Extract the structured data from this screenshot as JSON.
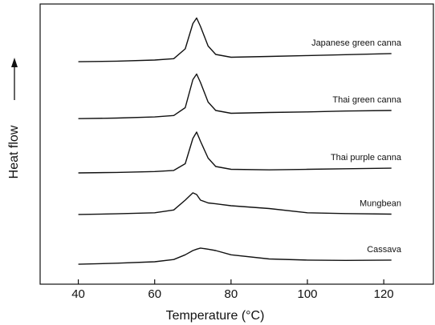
{
  "chart_data": {
    "type": "line",
    "x_label": "Temperature (°C)",
    "y_label": "Heat flow",
    "x": [
      40,
      50,
      60,
      65,
      68,
      70,
      71,
      72,
      74,
      76,
      80,
      90,
      100,
      110,
      122
    ],
    "series": [
      {
        "name": "Japanese green canna",
        "color": "#111111",
        "values": [
          79.4,
          79.6,
          80,
          80.5,
          84,
          93,
          95,
          92,
          85,
          82,
          81,
          81.3,
          81.6,
          81.9,
          82.3
        ]
      },
      {
        "name": "Thai green canna",
        "color": "#111111",
        "values": [
          59.1,
          59.3,
          59.7,
          60.2,
          63,
          73,
          75,
          72,
          65,
          62,
          61,
          61.3,
          61.5,
          61.8,
          62
        ]
      },
      {
        "name": "Thai purple canna",
        "color": "#111111",
        "values": [
          39.7,
          39.9,
          40.2,
          40.6,
          43,
          52,
          54.3,
          51,
          45,
          42,
          41,
          40.8,
          41,
          41.2,
          41.4
        ]
      },
      {
        "name": "Mungbean",
        "color": "#111111",
        "values": [
          24.9,
          25.1,
          25.5,
          26.5,
          30,
          32.6,
          32,
          30,
          29,
          28.7,
          28,
          27,
          25.5,
          25.2,
          25
        ]
      },
      {
        "name": "Cassava",
        "color": "#111111",
        "values": [
          7.1,
          7.5,
          8,
          8.8,
          10.5,
          12,
          12.5,
          12.9,
          12.5,
          12,
          10.5,
          9,
          8.6,
          8.5,
          8.6
        ]
      }
    ],
    "xlim": [
      30,
      133
    ],
    "xticks": [
      40,
      60,
      80,
      100,
      120
    ],
    "ylim": [
      0,
      100
    ]
  }
}
